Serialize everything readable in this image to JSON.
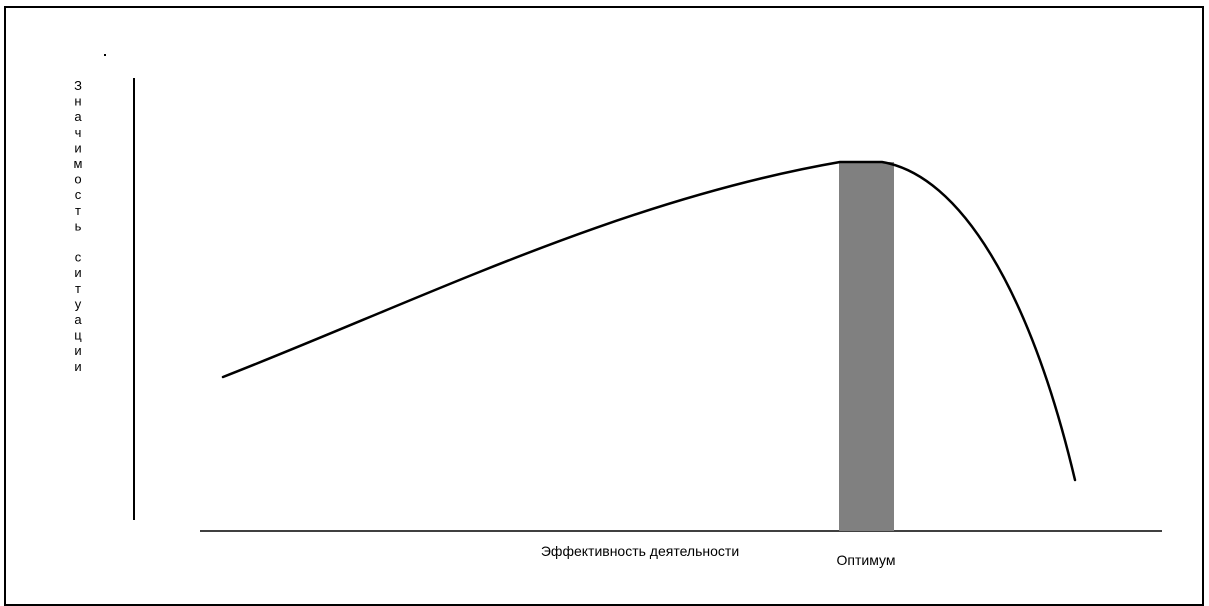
{
  "diagram": {
    "y_axis_label": "Значимость ситуации",
    "x_axis_label": "Эффективность деятельности",
    "optimum_label": "Оптимум",
    "colors": {
      "curve": "#000000",
      "optimum_band": "#808080",
      "axes": "#000000",
      "frame": "#000000"
    }
  }
}
